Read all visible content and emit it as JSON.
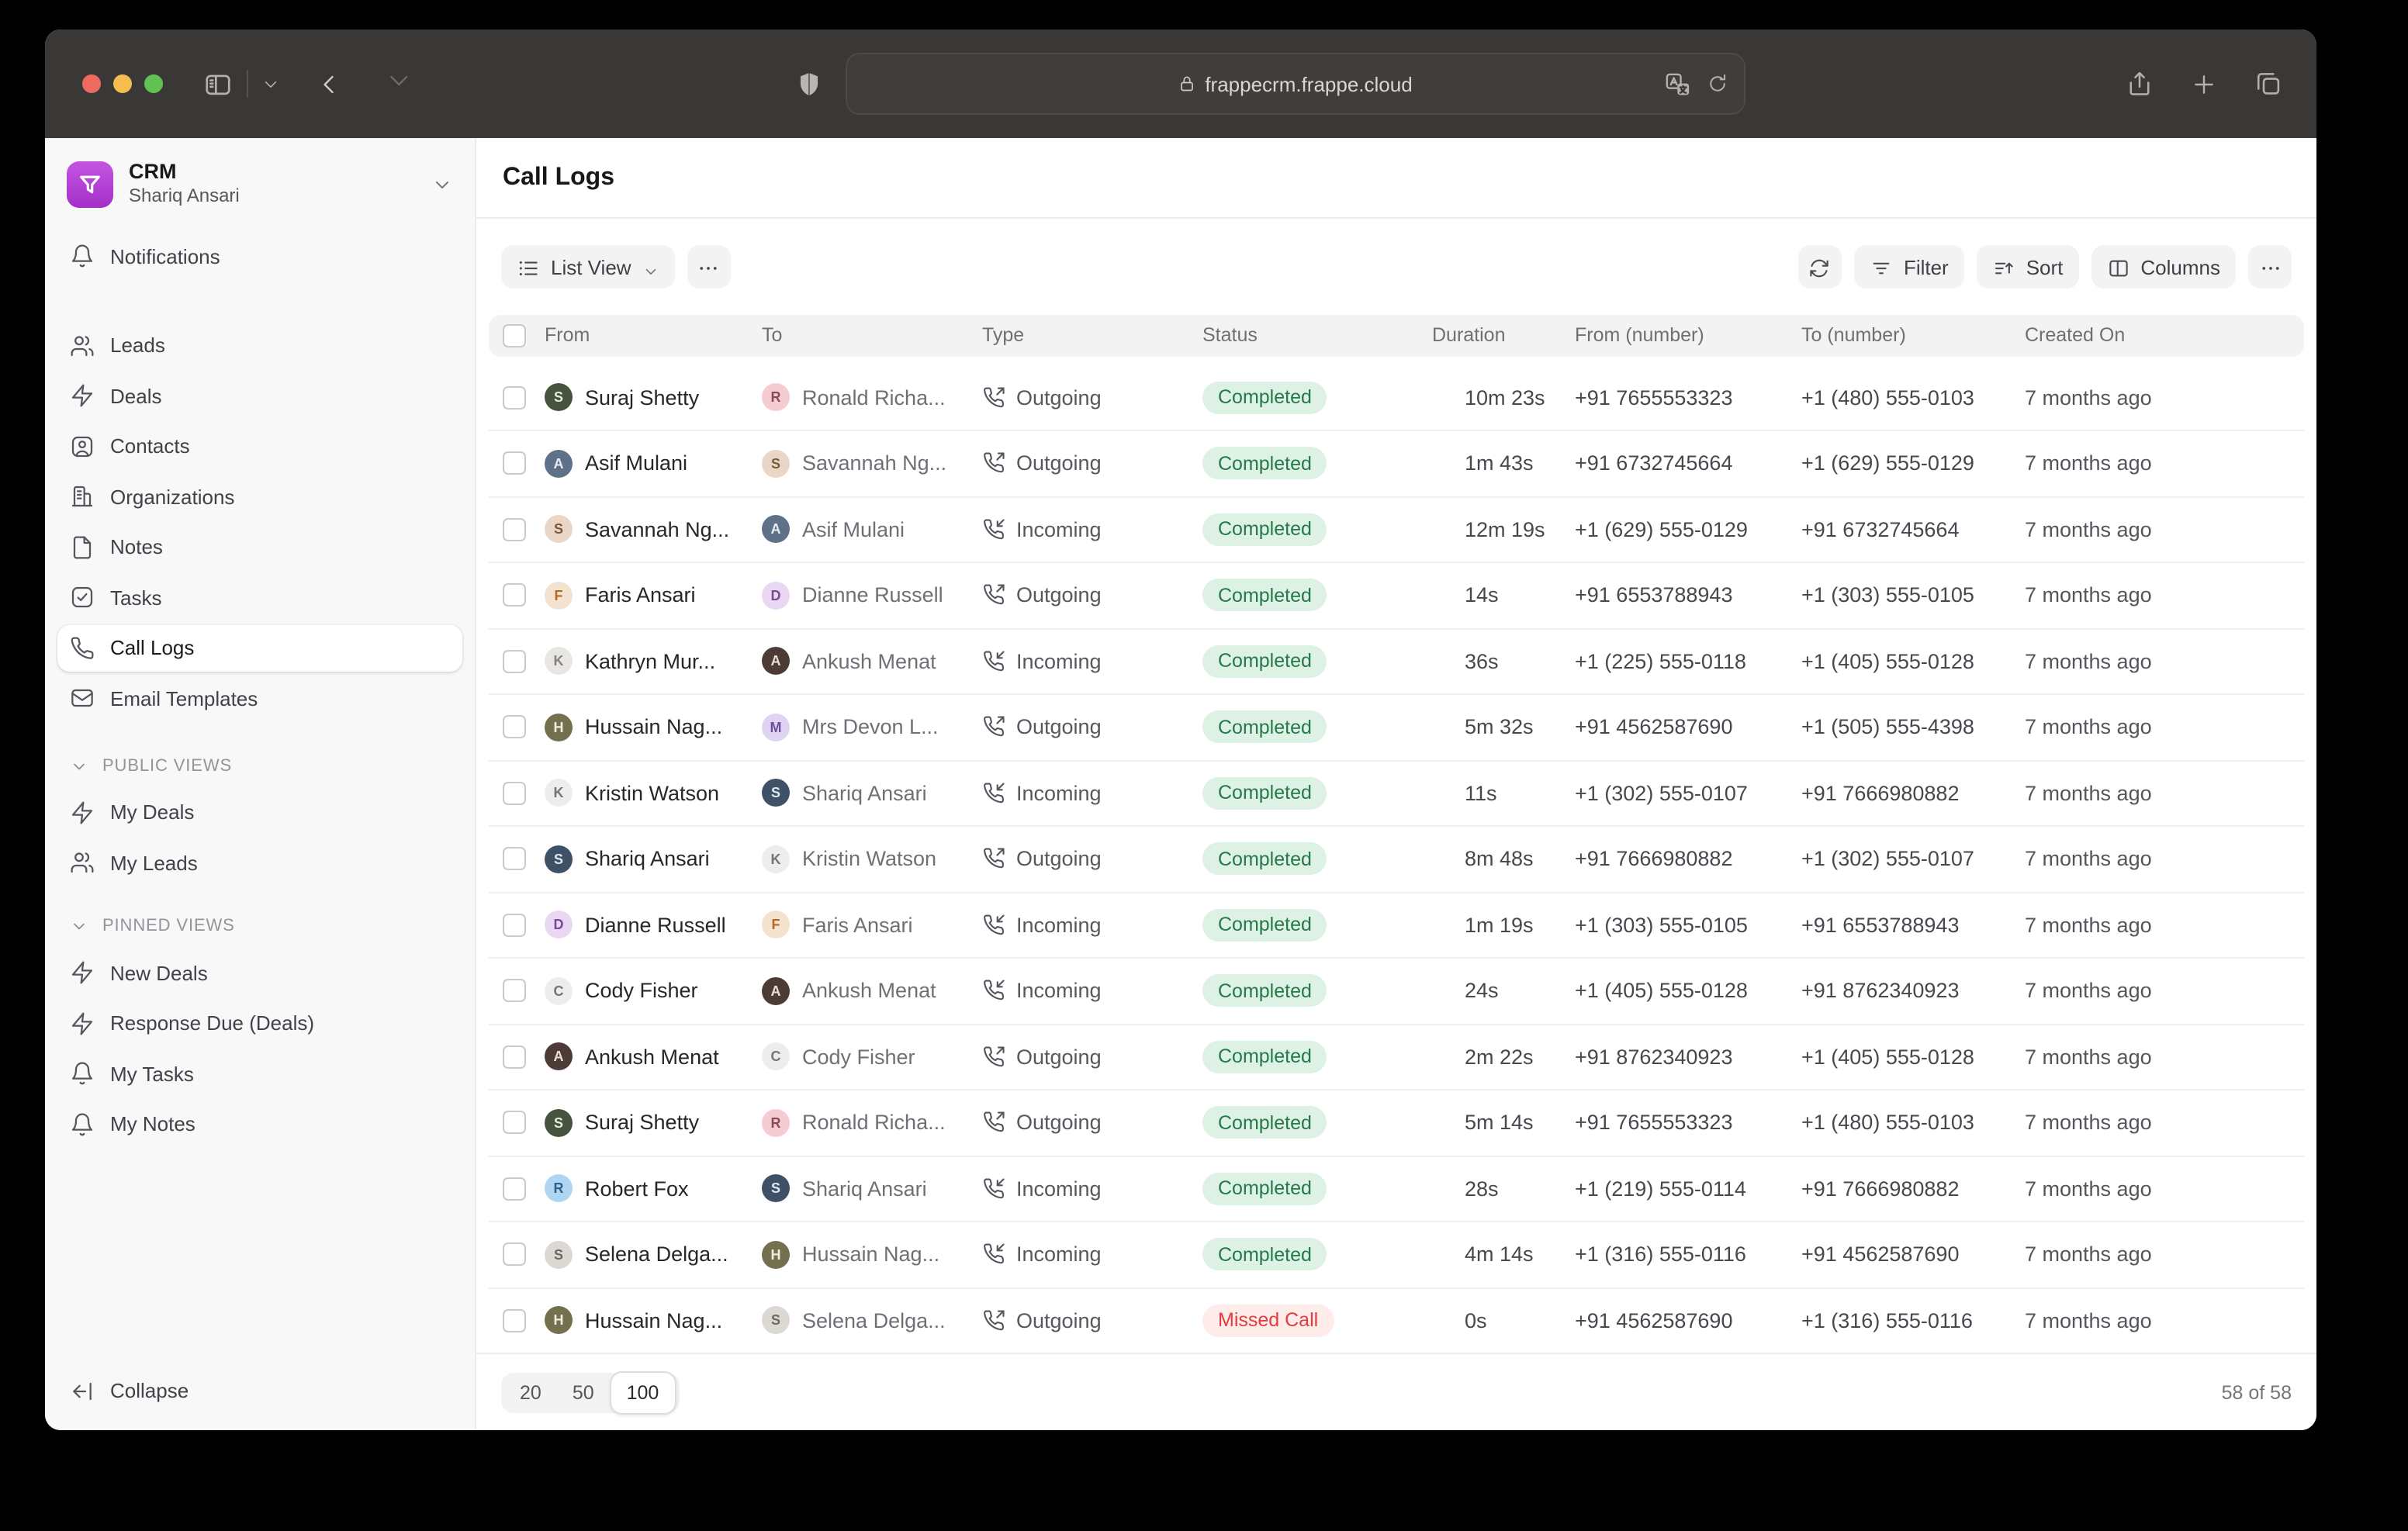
{
  "browser": {
    "url": "frappecrm.frappe.cloud",
    "icons": [
      "sidebar-toggle-icon",
      "chevron-down-icon",
      "back-icon",
      "forward-icon",
      "shield-icon",
      "lock-icon",
      "translate-icon",
      "reload-icon",
      "share-icon",
      "new-tab-icon",
      "tab-overview-icon"
    ]
  },
  "sidebar": {
    "app": {
      "name": "CRM",
      "user": "Shariq Ansari"
    },
    "notifications": {
      "label": "Notifications",
      "icon": "bell-icon"
    },
    "modules": [
      {
        "label": "Leads",
        "icon": "users-icon"
      },
      {
        "label": "Deals",
        "icon": "zap-icon"
      },
      {
        "label": "Contacts",
        "icon": "contact-icon"
      },
      {
        "label": "Organizations",
        "icon": "building-icon"
      },
      {
        "label": "Notes",
        "icon": "file-icon"
      },
      {
        "label": "Tasks",
        "icon": "task-icon"
      },
      {
        "label": "Call Logs",
        "icon": "phone-icon",
        "active": true
      },
      {
        "label": "Email Templates",
        "icon": "mail-icon"
      }
    ],
    "sections": [
      {
        "title": "PUBLIC VIEWS",
        "items": [
          {
            "label": "My Deals",
            "icon": "zap-icon"
          },
          {
            "label": "My Leads",
            "icon": "users-icon"
          }
        ]
      },
      {
        "title": "PINNED VIEWS",
        "items": [
          {
            "label": "New Deals",
            "icon": "zap-icon"
          },
          {
            "label": "Response Due (Deals)",
            "icon": "zap-icon"
          },
          {
            "label": "My Tasks",
            "icon": "bell-icon"
          },
          {
            "label": "My Notes",
            "icon": "bell-icon"
          }
        ]
      }
    ],
    "collapse_label": "Collapse"
  },
  "page": {
    "title": "Call Logs"
  },
  "toolbar": {
    "view_button": "List View",
    "filter": "Filter",
    "sort": "Sort",
    "columns": "Columns"
  },
  "table": {
    "columns": [
      "From",
      "To",
      "Type",
      "Status",
      "Duration",
      "From (number)",
      "To (number)",
      "Created On"
    ],
    "rows": [
      {
        "from": "Suraj Shetty",
        "from_avatar": "suraj",
        "to": "Ronald Richa...",
        "to_avatar": "ronald",
        "type": "Outgoing",
        "status": "Completed",
        "status_color": "green",
        "duration": "10m 23s",
        "from_number": "+91 7655553323",
        "to_number": "+1 (480) 555-0103",
        "created": "7 months ago"
      },
      {
        "from": "Asif Mulani",
        "from_avatar": "asif",
        "to": "Savannah Ng...",
        "to_avatar": "savannah",
        "type": "Outgoing",
        "status": "Completed",
        "status_color": "green",
        "duration": "1m 43s",
        "from_number": "+91 6732745664",
        "to_number": "+1 (629) 555-0129",
        "created": "7 months ago"
      },
      {
        "from": "Savannah Ng...",
        "from_avatar": "savannah",
        "to": "Asif Mulani",
        "to_avatar": "asif",
        "type": "Incoming",
        "status": "Completed",
        "status_color": "green",
        "duration": "12m 19s",
        "from_number": "+1 (629) 555-0129",
        "to_number": "+91 6732745664",
        "created": "7 months ago"
      },
      {
        "from": "Faris Ansari",
        "from_avatar": "faris",
        "to": "Dianne Russell",
        "to_avatar": "dianne",
        "type": "Outgoing",
        "status": "Completed",
        "status_color": "green",
        "duration": "14s",
        "from_number": "+91 6553788943",
        "to_number": "+1 (303) 555-0105",
        "created": "7 months ago"
      },
      {
        "from": "Kathryn Mur...",
        "from_avatar": "kathryn",
        "to": "Ankush Menat",
        "to_avatar": "ankush",
        "type": "Incoming",
        "status": "Completed",
        "status_color": "green",
        "duration": "36s",
        "from_number": "+1 (225) 555-0118",
        "to_number": "+1 (405) 555-0128",
        "created": "7 months ago"
      },
      {
        "from": "Hussain Nag...",
        "from_avatar": "hussain",
        "to": "Mrs Devon L...",
        "to_avatar": "devon",
        "type": "Outgoing",
        "status": "Completed",
        "status_color": "green",
        "duration": "5m 32s",
        "from_number": "+91 4562587690",
        "to_number": "+1 (505) 555-4398",
        "created": "7 months ago"
      },
      {
        "from": "Kristin Watson",
        "from_avatar": "kristin",
        "to": "Shariq Ansari",
        "to_avatar": "shariq",
        "type": "Incoming",
        "status": "Completed",
        "status_color": "green",
        "duration": "11s",
        "from_number": "+1 (302) 555-0107",
        "to_number": "+91 7666980882",
        "created": "7 months ago"
      },
      {
        "from": "Shariq Ansari",
        "from_avatar": "shariq",
        "to": "Kristin Watson",
        "to_avatar": "kristin",
        "type": "Outgoing",
        "status": "Completed",
        "status_color": "green",
        "duration": "8m 48s",
        "from_number": "+91 7666980882",
        "to_number": "+1 (302) 555-0107",
        "created": "7 months ago"
      },
      {
        "from": "Dianne Russell",
        "from_avatar": "dianne",
        "to": "Faris Ansari",
        "to_avatar": "faris",
        "type": "Incoming",
        "status": "Completed",
        "status_color": "green",
        "duration": "1m 19s",
        "from_number": "+1 (303) 555-0105",
        "to_number": "+91 6553788943",
        "created": "7 months ago"
      },
      {
        "from": "Cody Fisher",
        "from_avatar": "cody",
        "to": "Ankush Menat",
        "to_avatar": "ankush",
        "type": "Incoming",
        "status": "Completed",
        "status_color": "green",
        "duration": "24s",
        "from_number": "+1 (405) 555-0128",
        "to_number": "+91 8762340923",
        "created": "7 months ago"
      },
      {
        "from": "Ankush Menat",
        "from_avatar": "ankush",
        "to": "Cody Fisher",
        "to_avatar": "cody",
        "type": "Outgoing",
        "status": "Completed",
        "status_color": "green",
        "duration": "2m 22s",
        "from_number": "+91 8762340923",
        "to_number": "+1 (405) 555-0128",
        "created": "7 months ago"
      },
      {
        "from": "Suraj Shetty",
        "from_avatar": "suraj",
        "to": "Ronald Richa...",
        "to_avatar": "ronald",
        "type": "Outgoing",
        "status": "Completed",
        "status_color": "green",
        "duration": "5m 14s",
        "from_number": "+91 7655553323",
        "to_number": "+1 (480) 555-0103",
        "created": "7 months ago"
      },
      {
        "from": "Robert Fox",
        "from_avatar": "robert",
        "to": "Shariq Ansari",
        "to_avatar": "shariq",
        "type": "Incoming",
        "status": "Completed",
        "status_color": "green",
        "duration": "28s",
        "from_number": "+1 (219) 555-0114",
        "to_number": "+91 7666980882",
        "created": "7 months ago"
      },
      {
        "from": "Selena Delga...",
        "from_avatar": "selena",
        "to": "Hussain Nag...",
        "to_avatar": "hussain",
        "type": "Incoming",
        "status": "Completed",
        "status_color": "green",
        "duration": "4m 14s",
        "from_number": "+1 (316) 555-0116",
        "to_number": "+91 4562587690",
        "created": "7 months ago"
      },
      {
        "from": "Hussain Nag...",
        "from_avatar": "hussain",
        "to": "Selena Delga...",
        "to_avatar": "selena",
        "type": "Outgoing",
        "status": "Missed Call",
        "status_color": "red",
        "duration": "0s",
        "from_number": "+91 4562587690",
        "to_number": "+1 (316) 555-0116",
        "created": "7 months ago"
      }
    ]
  },
  "avatars": {
    "suraj": {
      "text": "S",
      "bg": "#47523f",
      "fg": "#e8ead8"
    },
    "ronald": {
      "text": "R",
      "bg": "#f6ccd4",
      "fg": "#8c4a50"
    },
    "asif": {
      "text": "A",
      "bg": "#5d7189",
      "fg": "#e6edf5"
    },
    "savannah": {
      "text": "S",
      "bg": "#e9d6c6",
      "fg": "#7a5a3c"
    },
    "faris": {
      "text": "F",
      "bg": "#f3e3cf",
      "fg": "#b06a2a"
    },
    "kathryn": {
      "text": "K",
      "bg": "#e9e7e4",
      "fg": "#8a837c"
    },
    "ankush": {
      "text": "A",
      "bg": "#4d3b36",
      "fg": "#eadfd8"
    },
    "hussain": {
      "text": "H",
      "bg": "#73704f",
      "fg": "#efeedd"
    },
    "devon": {
      "text": "M",
      "bg": "#e0d3f2",
      "fg": "#6f4f9a"
    },
    "kristin": {
      "text": "K",
      "bg": "#ededee",
      "fg": "#74747c"
    },
    "shariq": {
      "text": "S",
      "bg": "#3f5166",
      "fg": "#dde8f2"
    },
    "dianne": {
      "text": "D",
      "bg": "#ead7f4",
      "fg": "#7a4a96"
    },
    "cody": {
      "text": "C",
      "bg": "#ededee",
      "fg": "#74747c"
    },
    "robert": {
      "text": "R",
      "bg": "#aed6f2",
      "fg": "#2f5f84"
    },
    "selena": {
      "text": "S",
      "bg": "#dcd8d3",
      "fg": "#6e6760"
    }
  },
  "colors": {
    "brand_purple": "#b03cd4",
    "status": {
      "green": {
        "bg": "#ddf1e4",
        "text": "#25794a"
      },
      "red": {
        "bg": "#feeceb",
        "text": "#e23c3c"
      }
    },
    "traffic": {
      "close": "#ee6a5f",
      "minimize": "#f5bd4f",
      "zoom": "#61c354"
    }
  },
  "pagination": {
    "options": [
      "20",
      "50",
      "100"
    ],
    "selected": "100",
    "count": "58 of 58"
  }
}
